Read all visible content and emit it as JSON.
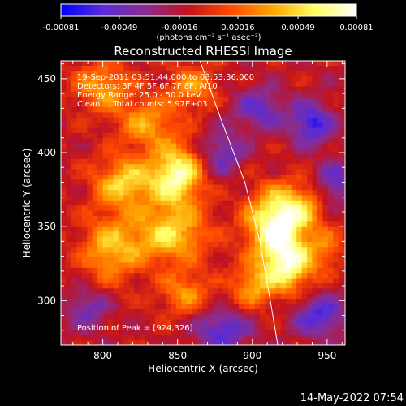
{
  "chart_data": {
    "type": "heatmap",
    "title": "Reconstructed RHESSI Image",
    "xlabel": "Heliocentric X (arcsec)",
    "ylabel": "Heliocentric Y (arcsec)",
    "xlim": [
      772,
      962
    ],
    "ylim": [
      270,
      462
    ],
    "x_ticks": [
      800,
      850,
      900,
      950
    ],
    "x_tick_labels": [
      "800",
      "850",
      "900",
      "950"
    ],
    "y_ticks": [
      300,
      350,
      400,
      450
    ],
    "y_tick_labels": [
      "300",
      "350",
      "400",
      "450"
    ],
    "colorbar": {
      "min": -0.00081,
      "max": 0.00081,
      "ticks": [
        -0.00081,
        -0.00049,
        -0.00016,
        0.00016,
        0.00049,
        0.00081
      ],
      "tick_labels": [
        "-0.00081",
        "-0.00049",
        "-0.00016",
        "0.00016",
        "0.00049",
        "0.00081"
      ],
      "unit_label": "(photons cm⁻² s⁻¹ asec⁻²)",
      "colors": [
        "#0000ff",
        "#5a2cd6",
        "#8b2d8f",
        "#c0121e",
        "#ff4a00",
        "#ffa400",
        "#ffff60",
        "#ffffff"
      ]
    },
    "annotations": {
      "time_range": "19-Sep-2011 03:51:44.000 to 03:53:36.000",
      "detectors": "Detectors: 3F 4F 5F 6F 7F 8F, AI10",
      "energy": "Energy Range: 25.0 - 50.0 keV",
      "clean": "Clean     Total counts: 5.97E+03",
      "peak": "Position of Peak = [924,326]"
    },
    "limb": [
      [
        865,
        462
      ],
      [
        880,
        420
      ],
      [
        895,
        380
      ],
      [
        905,
        340
      ],
      [
        912,
        300
      ],
      [
        917,
        270
      ]
    ],
    "peak_position": [
      924,
      326
    ],
    "sources": [
      {
        "x": 850,
        "y": 385,
        "amp": 0.0008,
        "sx": 12,
        "sy": 14
      },
      {
        "x": 815,
        "y": 380,
        "amp": 0.0006,
        "sx": 15,
        "sy": 12
      },
      {
        "x": 845,
        "y": 345,
        "amp": 0.0006,
        "sx": 18,
        "sy": 14
      },
      {
        "x": 805,
        "y": 335,
        "amp": 0.0005,
        "sx": 14,
        "sy": 16
      },
      {
        "x": 830,
        "y": 420,
        "amp": 0.00045,
        "sx": 14,
        "sy": 12
      },
      {
        "x": 800,
        "y": 445,
        "amp": 0.00045,
        "sx": 14,
        "sy": 12
      },
      {
        "x": 860,
        "y": 445,
        "amp": 0.0004,
        "sx": 12,
        "sy": 10
      },
      {
        "x": 924,
        "y": 326,
        "amp": 0.00081,
        "sx": 12,
        "sy": 14
      },
      {
        "x": 912,
        "y": 352,
        "amp": 0.0007,
        "sx": 12,
        "sy": 16
      },
      {
        "x": 930,
        "y": 362,
        "amp": 0.00055,
        "sx": 12,
        "sy": 12
      },
      {
        "x": 900,
        "y": 310,
        "amp": 0.00045,
        "sx": 10,
        "sy": 10
      },
      {
        "x": 855,
        "y": 305,
        "amp": 0.0004,
        "sx": 12,
        "sy": 10
      },
      {
        "x": 950,
        "y": 335,
        "amp": 0.0003,
        "sx": 8,
        "sy": 10
      },
      {
        "x": 940,
        "y": 420,
        "amp": -0.00055,
        "sx": 10,
        "sy": 10
      },
      {
        "x": 905,
        "y": 430,
        "amp": -0.0004,
        "sx": 12,
        "sy": 10
      },
      {
        "x": 880,
        "y": 280,
        "amp": -0.0005,
        "sx": 12,
        "sy": 10
      },
      {
        "x": 945,
        "y": 290,
        "amp": -0.0005,
        "sx": 12,
        "sy": 10
      },
      {
        "x": 790,
        "y": 295,
        "amp": -0.00035,
        "sx": 10,
        "sy": 10
      },
      {
        "x": 880,
        "y": 400,
        "amp": -0.0004,
        "sx": 10,
        "sy": 10
      },
      {
        "x": 955,
        "y": 380,
        "amp": -0.0004,
        "sx": 8,
        "sy": 10
      }
    ]
  },
  "footer": {
    "date": "14-May-2022 07:54"
  }
}
